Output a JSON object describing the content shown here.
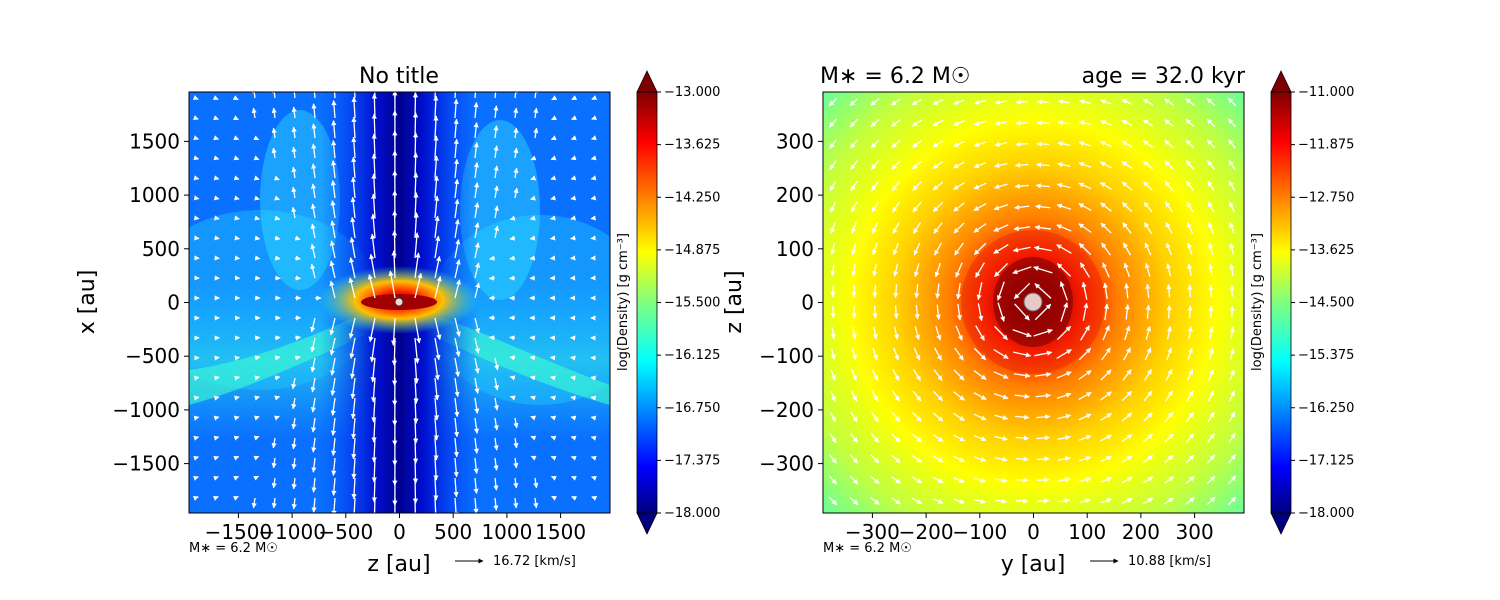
{
  "chart_data": [
    {
      "type": "heatmap",
      "title": "No title",
      "xlabel": "z [au]",
      "ylabel": "x [au]",
      "xlim": [
        -1960,
        1960
      ],
      "ylim": [
        -1960,
        1960
      ],
      "xticks": [
        {
          "value": -1500,
          "label": "−1500"
        },
        {
          "value": -1000,
          "label": "−1000"
        },
        {
          "value": -500,
          "label": "−500"
        },
        {
          "value": 0,
          "label": "0"
        },
        {
          "value": 500,
          "label": "500"
        },
        {
          "value": 1000,
          "label": "1000"
        },
        {
          "value": 1500,
          "label": "1500"
        }
      ],
      "yticks": [
        {
          "value": 1500,
          "label": "1500"
        },
        {
          "value": 1000,
          "label": "1000"
        },
        {
          "value": 500,
          "label": "500"
        },
        {
          "value": 0,
          "label": "0"
        },
        {
          "value": -500,
          "label": "−500"
        },
        {
          "value": -1000,
          "label": "−1000"
        },
        {
          "value": -1500,
          "label": "−1500"
        }
      ],
      "colorbar": {
        "label": "log(Density) [g cm⁻³]",
        "range": [
          -18.0,
          -13.0
        ],
        "ticks": [
          {
            "value": -13.0,
            "label": "−13.000"
          },
          {
            "value": -13.625,
            "label": "−13.625"
          },
          {
            "value": -14.25,
            "label": "−14.250"
          },
          {
            "value": -14.875,
            "label": "−14.875"
          },
          {
            "value": -15.5,
            "label": "−15.500"
          },
          {
            "value": -16.125,
            "label": "−16.125"
          },
          {
            "value": -16.75,
            "label": "−16.750"
          },
          {
            "value": -17.375,
            "label": "−17.375"
          },
          {
            "value": -18.0,
            "label": "−18.000"
          }
        ]
      },
      "annotations": {
        "mass": "M∗ = 6.2 M☉",
        "vector_scale": "16.72 [km/s]"
      },
      "colormap": "jet",
      "vectors": "outflow along vertical axis, disk along horizontal"
    },
    {
      "type": "heatmap",
      "title_left": "M∗ = 6.2 M☉",
      "title_right": "age = 32.0 kyr",
      "xlabel": "y [au]",
      "ylabel": "z [au]",
      "xlim": [
        -392,
        392
      ],
      "ylim": [
        -392,
        392
      ],
      "xticks": [
        {
          "value": -300,
          "label": "−300"
        },
        {
          "value": -200,
          "label": "−200"
        },
        {
          "value": -100,
          "label": "−100"
        },
        {
          "value": 0,
          "label": "0"
        },
        {
          "value": 100,
          "label": "100"
        },
        {
          "value": 200,
          "label": "200"
        },
        {
          "value": 300,
          "label": "300"
        }
      ],
      "yticks": [
        {
          "value": 300,
          "label": "300"
        },
        {
          "value": 200,
          "label": "200"
        },
        {
          "value": 100,
          "label": "100"
        },
        {
          "value": 0,
          "label": "0"
        },
        {
          "value": -100,
          "label": "−100"
        },
        {
          "value": -200,
          "label": "−200"
        },
        {
          "value": -300,
          "label": "−300"
        }
      ],
      "colorbar": {
        "label": "log(Density) [g cm⁻³]",
        "range": [
          -18.0,
          -11.0
        ],
        "ticks": [
          {
            "value": -11.0,
            "label": "−11.000"
          },
          {
            "value": -11.875,
            "label": "−11.875"
          },
          {
            "value": -12.75,
            "label": "−12.750"
          },
          {
            "value": -13.625,
            "label": "−13.625"
          },
          {
            "value": -14.5,
            "label": "−14.500"
          },
          {
            "value": -15.375,
            "label": "−15.375"
          },
          {
            "value": -16.25,
            "label": "−16.250"
          },
          {
            "value": -17.125,
            "label": "−17.125"
          },
          {
            "value": -18.0,
            "label": "−18.000"
          }
        ]
      },
      "annotations": {
        "mass": "M∗ = 6.2 M☉",
        "vector_scale": "10.88 [km/s]"
      },
      "colormap": "jet",
      "vectors": "counter-clockwise rotation around center"
    }
  ]
}
